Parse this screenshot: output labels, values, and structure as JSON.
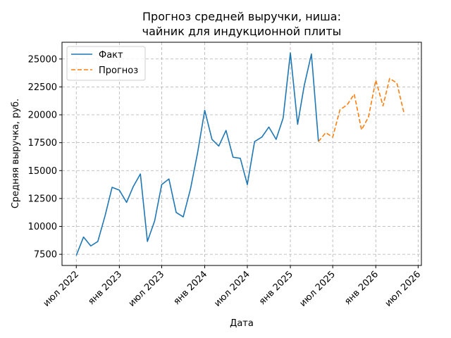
{
  "chart_data": {
    "type": "line",
    "title_lines": [
      "Прогноз средней выручки, ниша:",
      "чайник для индукционной плиты"
    ],
    "xlabel": "Дата",
    "ylabel": "Средняя выручка, руб.",
    "xlim": [
      "2022-05-01",
      "2026-07-15"
    ],
    "ylim": [
      6500,
      26500
    ],
    "grid": true,
    "legend_position": "top-left",
    "x_ticks": [
      {
        "date": "2022-07-01",
        "label": "июл 2022"
      },
      {
        "date": "2023-01-01",
        "label": "янв 2023"
      },
      {
        "date": "2023-07-01",
        "label": "июл 2023"
      },
      {
        "date": "2024-01-01",
        "label": "янв 2024"
      },
      {
        "date": "2024-07-01",
        "label": "июл 2024"
      },
      {
        "date": "2025-01-01",
        "label": "янв 2025"
      },
      {
        "date": "2025-07-01",
        "label": "июл 2025"
      },
      {
        "date": "2026-01-01",
        "label": "янв 2026"
      },
      {
        "date": "2026-07-01",
        "label": "июл 2026"
      }
    ],
    "y_ticks": [
      7500,
      10000,
      12500,
      15000,
      17500,
      20000,
      22500,
      25000
    ],
    "series": [
      {
        "name": "Факт",
        "color": "#1f77b4",
        "dash": "solid",
        "points": [
          {
            "x": "2022-07-01",
            "y": 7400
          },
          {
            "x": "2022-08-01",
            "y": 9050
          },
          {
            "x": "2022-09-01",
            "y": 8250
          },
          {
            "x": "2022-10-01",
            "y": 8650
          },
          {
            "x": "2022-11-01",
            "y": 10950
          },
          {
            "x": "2022-12-01",
            "y": 13500
          },
          {
            "x": "2023-01-01",
            "y": 13250
          },
          {
            "x": "2023-02-01",
            "y": 12150
          },
          {
            "x": "2023-03-01",
            "y": 13550
          },
          {
            "x": "2023-04-01",
            "y": 14700
          },
          {
            "x": "2023-05-01",
            "y": 8650
          },
          {
            "x": "2023-06-01",
            "y": 10500
          },
          {
            "x": "2023-07-01",
            "y": 13750
          },
          {
            "x": "2023-08-01",
            "y": 14250
          },
          {
            "x": "2023-09-01",
            "y": 11250
          },
          {
            "x": "2023-10-01",
            "y": 10850
          },
          {
            "x": "2023-11-01",
            "y": 13350
          },
          {
            "x": "2023-12-01",
            "y": 16550
          },
          {
            "x": "2024-01-01",
            "y": 20400
          },
          {
            "x": "2024-02-01",
            "y": 17800
          },
          {
            "x": "2024-03-01",
            "y": 17200
          },
          {
            "x": "2024-04-01",
            "y": 18600
          },
          {
            "x": "2024-05-01",
            "y": 16200
          },
          {
            "x": "2024-06-01",
            "y": 16100
          },
          {
            "x": "2024-07-01",
            "y": 13750
          },
          {
            "x": "2024-08-01",
            "y": 17600
          },
          {
            "x": "2024-09-01",
            "y": 18000
          },
          {
            "x": "2024-10-01",
            "y": 18900
          },
          {
            "x": "2024-11-01",
            "y": 17800
          },
          {
            "x": "2024-12-01",
            "y": 19700
          },
          {
            "x": "2025-01-01",
            "y": 25550
          },
          {
            "x": "2025-02-01",
            "y": 19150
          },
          {
            "x": "2025-03-01",
            "y": 22600
          },
          {
            "x": "2025-04-01",
            "y": 25450
          },
          {
            "x": "2025-05-01",
            "y": 17600
          }
        ]
      },
      {
        "name": "Прогноз",
        "color": "#ff7f0e",
        "dash": "dashed",
        "points": [
          {
            "x": "2025-05-01",
            "y": 17600
          },
          {
            "x": "2025-06-01",
            "y": 18400
          },
          {
            "x": "2025-07-01",
            "y": 18000
          },
          {
            "x": "2025-08-01",
            "y": 20450
          },
          {
            "x": "2025-09-01",
            "y": 20900
          },
          {
            "x": "2025-10-01",
            "y": 21850
          },
          {
            "x": "2025-11-01",
            "y": 18650
          },
          {
            "x": "2025-12-01",
            "y": 19800
          },
          {
            "x": "2026-01-01",
            "y": 23100
          },
          {
            "x": "2026-02-01",
            "y": 20800
          },
          {
            "x": "2026-03-01",
            "y": 23250
          },
          {
            "x": "2026-04-01",
            "y": 22850
          },
          {
            "x": "2026-05-01",
            "y": 20200
          }
        ]
      }
    ]
  }
}
